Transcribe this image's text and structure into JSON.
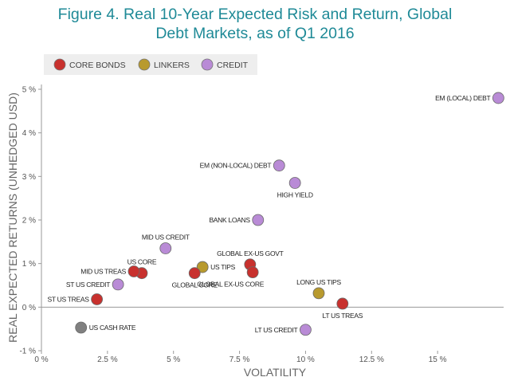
{
  "title": {
    "line1": "Figure 4. Real 10-Year Expected Risk and Return, Global",
    "line2": "Debt Markets, as of Q1 2016"
  },
  "chart_data": {
    "type": "scatter",
    "title": "Figure 4. Real 10-Year Expected Risk and Return, Global Debt Markets, as of Q1 2016",
    "xlabel": "VOLATILITY",
    "ylabel": "REAL EXPECTED RETURNS (UNHEDGED USD)",
    "xlim": [
      0,
      17.5
    ],
    "ylim": [
      -1,
      5
    ],
    "x_ticks": [
      0,
      2.5,
      5,
      7.5,
      10,
      12.5,
      15
    ],
    "x_tick_labels": [
      "0 %",
      "2.5 %",
      "5 %",
      "7.5 %",
      "10 %",
      "12.5 %",
      "15 %"
    ],
    "y_ticks": [
      -1,
      0,
      1,
      2,
      3,
      4,
      5
    ],
    "y_tick_labels": [
      "-1 %",
      "0 %",
      "1 %",
      "2 %",
      "3 %",
      "4 %",
      "5 %"
    ],
    "grid": false,
    "legend_position": "top-left",
    "legend": [
      {
        "name": "CORE BONDS",
        "color": "#c8312e"
      },
      {
        "name": "LINKERS",
        "color": "#b89a2e"
      },
      {
        "name": "CREDIT",
        "color": "#b98bd6"
      }
    ],
    "cash_color": "#808080",
    "points": [
      {
        "label": "EM (LOCAL) DEBT",
        "x": 17.3,
        "y": 4.8,
        "group": "CREDIT",
        "anchor": "left"
      },
      {
        "label": "EM (NON-LOCAL) DEBT",
        "x": 9.0,
        "y": 3.25,
        "group": "CREDIT",
        "anchor": "left"
      },
      {
        "label": "HIGH YIELD",
        "x": 9.6,
        "y": 2.85,
        "group": "CREDIT",
        "anchor": "below"
      },
      {
        "label": "BANK LOANS",
        "x": 8.2,
        "y": 2.0,
        "group": "CREDIT",
        "anchor": "left"
      },
      {
        "label": "MID US CREDIT",
        "x": 4.7,
        "y": 1.35,
        "group": "CREDIT",
        "anchor": "above"
      },
      {
        "label": "ST US CREDIT",
        "x": 2.9,
        "y": 0.52,
        "group": "CREDIT",
        "anchor": "left"
      },
      {
        "label": "LT US CREDIT",
        "x": 10.0,
        "y": -0.52,
        "group": "CREDIT",
        "anchor": "left"
      },
      {
        "label": "US TIPS",
        "x": 6.1,
        "y": 0.92,
        "group": "LINKERS",
        "anchor": "right"
      },
      {
        "label": "LONG US TIPS",
        "x": 10.5,
        "y": 0.32,
        "group": "LINKERS",
        "anchor": "above"
      },
      {
        "label": "GLOBAL EX-US GOVT",
        "x": 7.9,
        "y": 0.98,
        "group": "CORE BONDS",
        "anchor": "above"
      },
      {
        "label": "GLOBAL EX-US CORE",
        "x": 8.0,
        "y": 0.8,
        "group": "CORE BONDS",
        "anchor": "below-left"
      },
      {
        "label": "GLOBAL CORE",
        "x": 5.8,
        "y": 0.78,
        "group": "CORE BONDS",
        "anchor": "below"
      },
      {
        "label": "US CORE",
        "x": 3.8,
        "y": 0.78,
        "group": "CORE BONDS",
        "anchor": "above"
      },
      {
        "label": "MID US TREAS",
        "x": 3.5,
        "y": 0.82,
        "group": "CORE BONDS",
        "anchor": "left"
      },
      {
        "label": "ST US TREAS",
        "x": 2.1,
        "y": 0.18,
        "group": "CORE BONDS",
        "anchor": "left"
      },
      {
        "label": "LT US TREAS",
        "x": 11.4,
        "y": 0.08,
        "group": "CORE BONDS",
        "anchor": "below"
      },
      {
        "label": "US CASH RATE",
        "x": 1.5,
        "y": -0.47,
        "group": "CASH",
        "anchor": "right"
      }
    ]
  }
}
